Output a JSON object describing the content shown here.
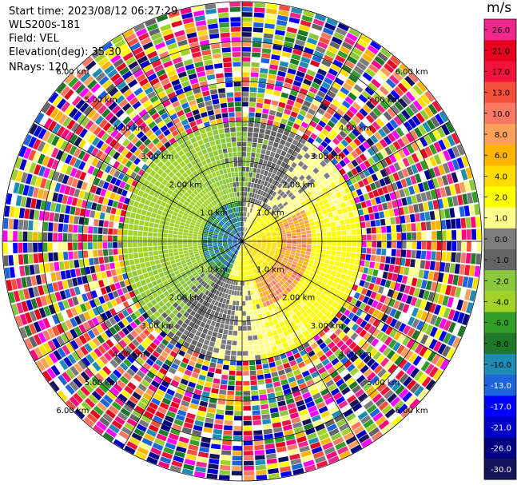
{
  "header": {
    "start_time": "Start time: 2023/08/12 06:27:29",
    "instrument": "WLS200s-181",
    "field": "Field: VEL",
    "elevation": "Elevation(deg): 35.30",
    "nrays": "NRays: 120"
  },
  "colorbar": {
    "unit": "m/s",
    "levels": [
      {
        "label": "26.0",
        "color": "#f0288c"
      },
      {
        "label": "21.0",
        "color": "#e6001e"
      },
      {
        "label": "17.0",
        "color": "#f0143c"
      },
      {
        "label": "13.0",
        "color": "#f5503c"
      },
      {
        "label": "10.0",
        "color": "#fa7864"
      },
      {
        "label": "8.0",
        "color": "#ffa05a"
      },
      {
        "label": "6.0",
        "color": "#ffb400"
      },
      {
        "label": "4.0",
        "color": "#ffdc00"
      },
      {
        "label": "2.0",
        "color": "#ffff00"
      },
      {
        "label": "1.0",
        "color": "#ffff8c"
      },
      {
        "label": "0.0",
        "color": "#7c7c7c"
      },
      {
        "label": "-1.0",
        "color": "#646464"
      },
      {
        "label": "-2.0",
        "color": "#8cc83c"
      },
      {
        "label": "-4.0",
        "color": "#a0d22a"
      },
      {
        "label": "-6.0",
        "color": "#32a028"
      },
      {
        "label": "-8.0",
        "color": "#1e7828"
      },
      {
        "label": "-10.0",
        "color": "#1e8cb4"
      },
      {
        "label": "-13.0",
        "color": "#1e64dc"
      },
      {
        "label": "-17.0",
        "color": "#0000ff"
      },
      {
        "label": "-21.0",
        "color": "#0000c8"
      },
      {
        "label": "-26.0",
        "color": "#000082"
      },
      {
        "label": "-30.0",
        "color": "#14145a"
      }
    ]
  },
  "chart_data": {
    "type": "heatmap",
    "projection": "polar PPI",
    "field": "VEL",
    "units": "m/s",
    "nrays": 120,
    "elevation_deg": 35.3,
    "range_rings_km": [
      1.0,
      2.0,
      3.0,
      4.0,
      5.0,
      6.0
    ],
    "ring_labels": [
      "1.0 km",
      "2.00 km",
      "3.00 km",
      "4.00 km",
      "5.00 km",
      "6.00 km"
    ],
    "vmin": -30.0,
    "vmax": 26.0,
    "pattern": {
      "inner_0_1km": "near-zero green/blue (approaching) on west side, yellow on east",
      "1_3km": "receding (orange/yellow, +2 to +10 m/s) east-southeast; approaching (green/grey, -1 to -4 m/s) west-north",
      "beyond_3km": "noise (random values)"
    }
  }
}
